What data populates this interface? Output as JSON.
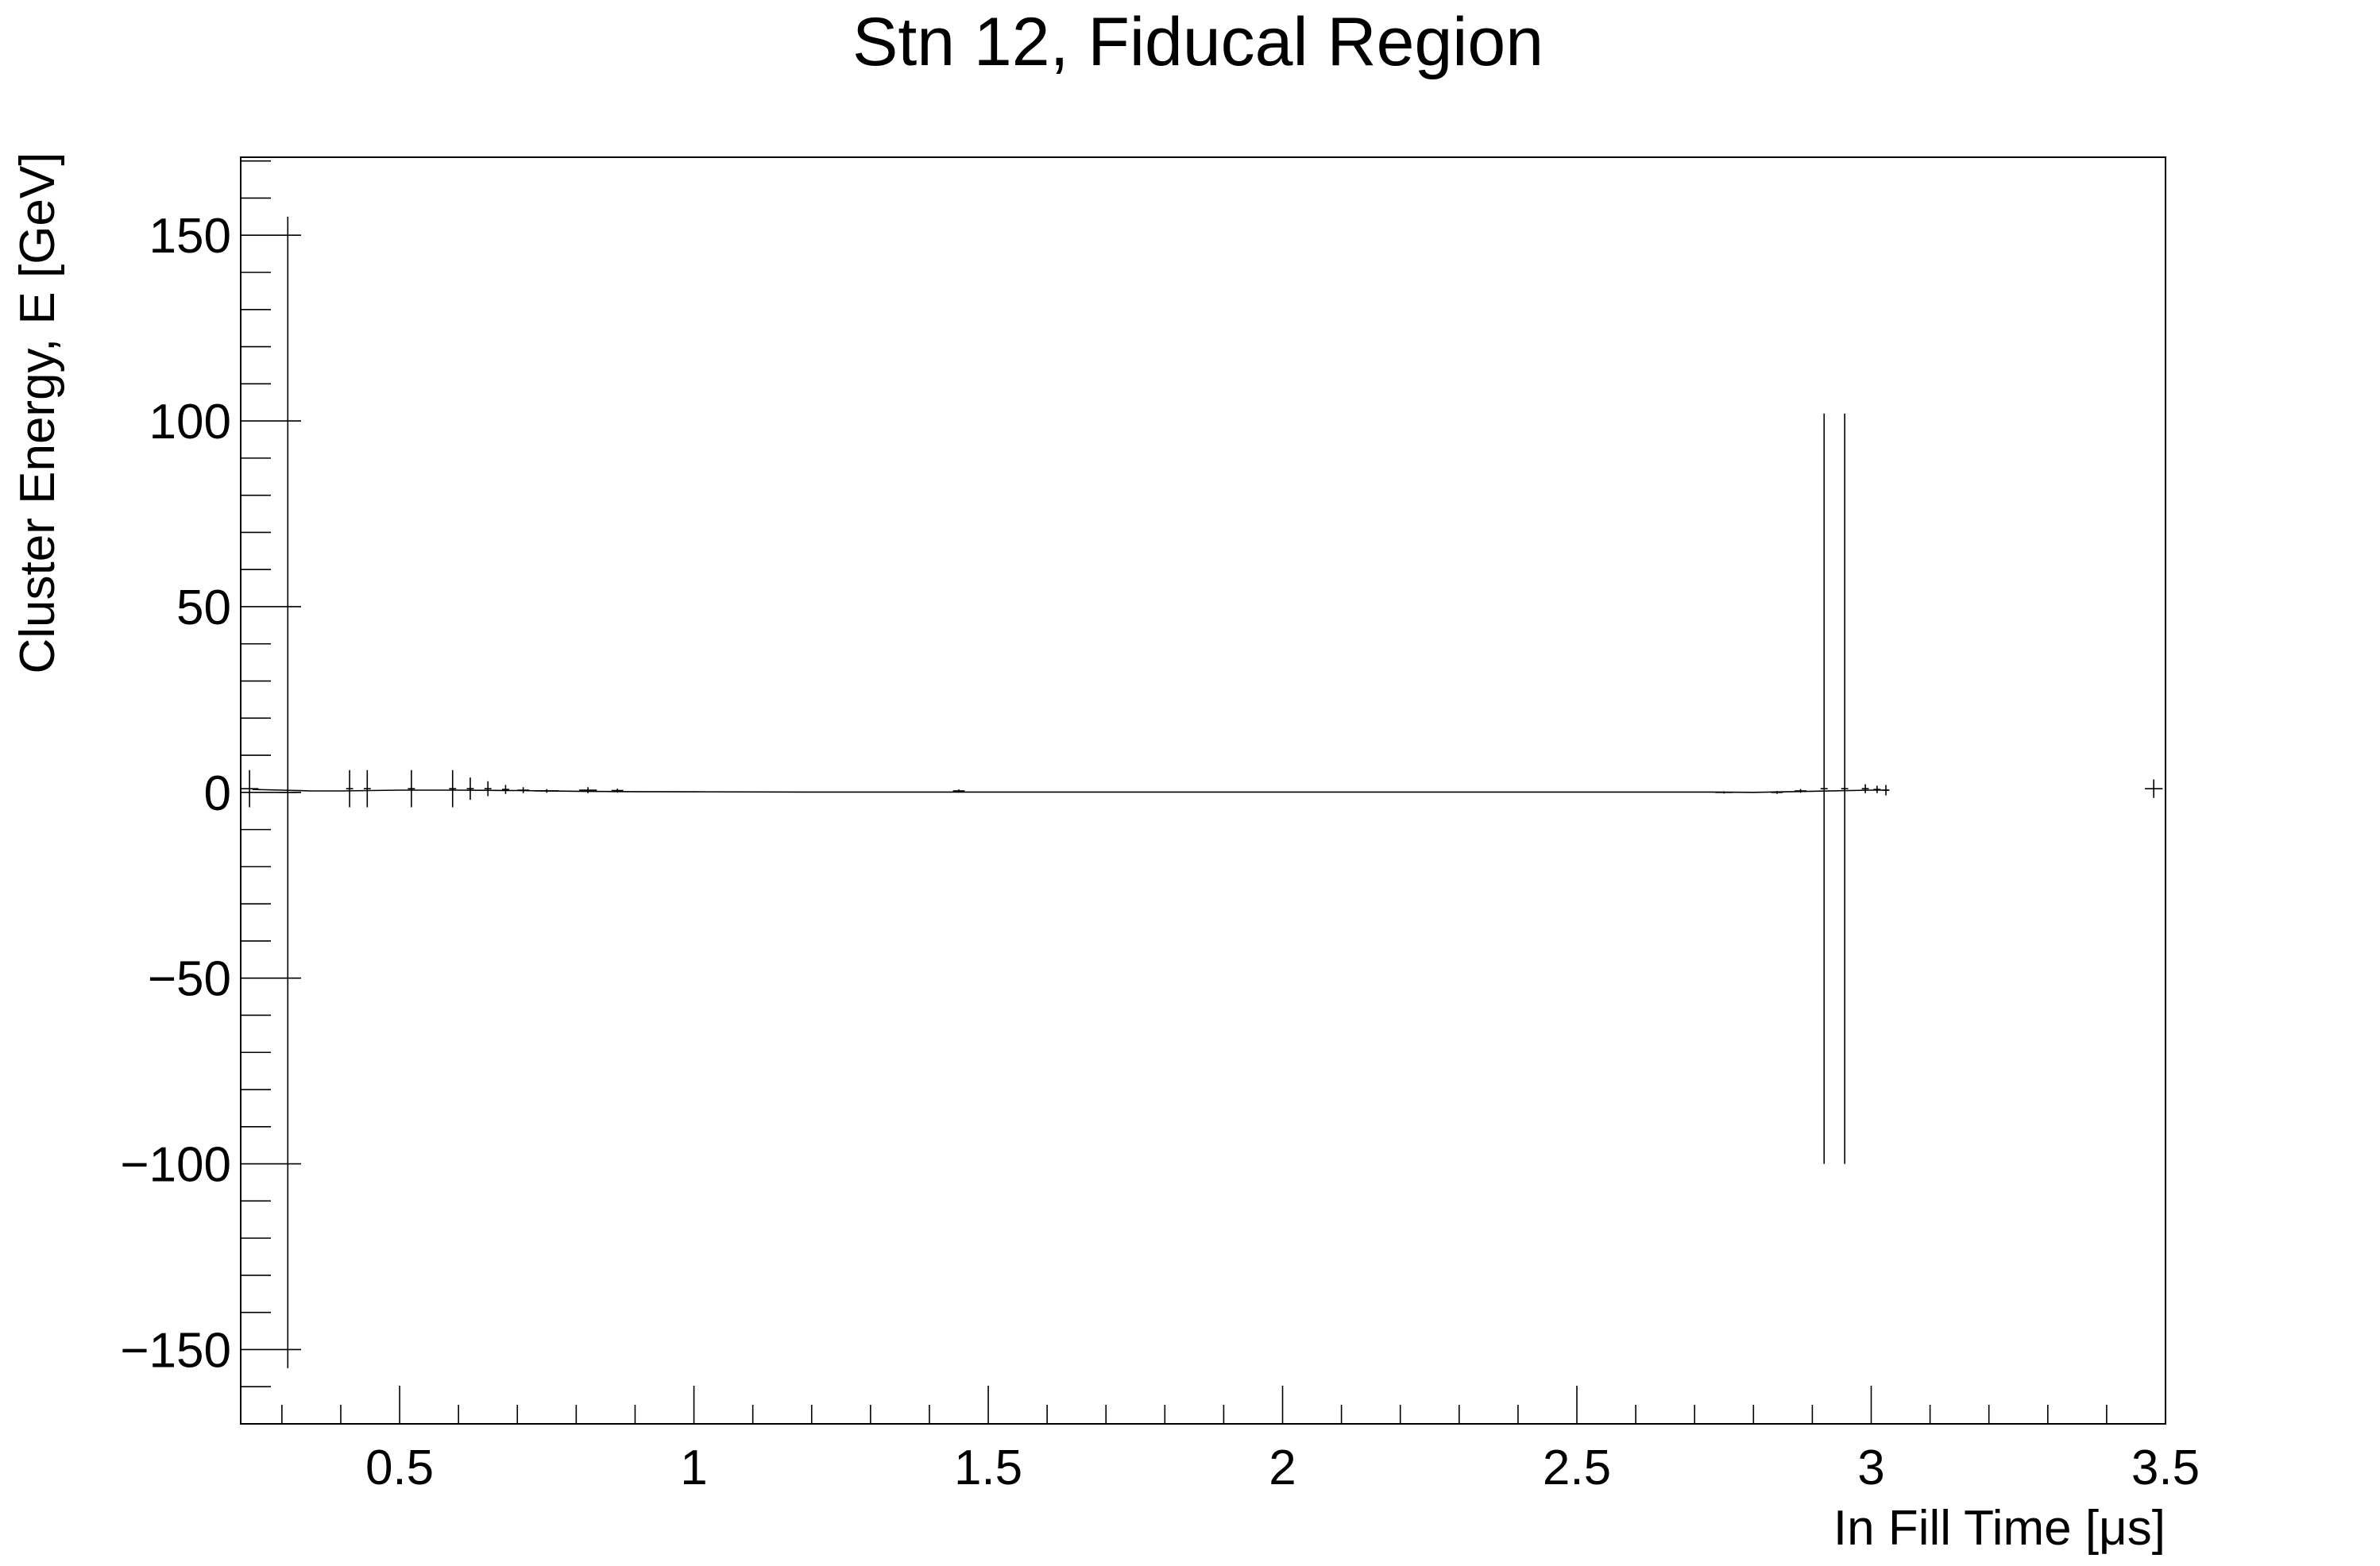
{
  "chart_data": {
    "type": "scatter",
    "title": "Stn 12, Fiducal Region",
    "xlabel": "In Fill Time [μs]",
    "ylabel": "Cluster Energy, E [GeV]",
    "xlim": [
      0.23,
      3.5
    ],
    "ylim": [
      -170,
      171
    ],
    "x_ticks": [
      0.5,
      1,
      1.5,
      2,
      2.5,
      3,
      3.5
    ],
    "x_tick_labels": [
      "0.5",
      "1",
      "1.5",
      "2",
      "2.5",
      "3",
      "3.5"
    ],
    "y_ticks": [
      -150,
      -100,
      -50,
      0,
      50,
      100,
      150
    ],
    "y_tick_labels": [
      "−150",
      "−100",
      "−50",
      "0",
      "50",
      "100",
      "150"
    ],
    "grid": false,
    "legend": "none",
    "series": [
      {
        "style": "error-bars",
        "x": [
          0.245,
          0.31,
          0.415,
          0.445,
          0.52,
          0.59,
          0.62,
          0.65,
          0.68,
          0.71,
          0.75,
          0.82,
          0.87,
          1.45,
          2.75,
          2.84,
          2.88,
          2.92,
          2.955,
          2.99,
          3.01,
          3.025,
          3.48
        ],
        "y": [
          1,
          0,
          1,
          1,
          1,
          1,
          1,
          1,
          0.8,
          0.6,
          0.4,
          0.6,
          0.5,
          0.4,
          0,
          0,
          0.4,
          1,
          1,
          1,
          0.8,
          0.6,
          1
        ],
        "yerr": [
          5,
          155,
          5,
          5,
          5,
          5,
          3,
          2,
          1.2,
          0.8,
          0.5,
          0.8,
          0.5,
          0.4,
          0.3,
          0.4,
          0.5,
          101,
          101,
          1.2,
          1.0,
          1.4,
          2.5
        ],
        "xerr": [
          0.015,
          0.015,
          0.006,
          0.006,
          0.006,
          0.006,
          0.006,
          0.006,
          0.006,
          0.01,
          0.02,
          0.015,
          0.01,
          0.01,
          0.015,
          0.01,
          0.01,
          0.006,
          0.006,
          0.006,
          0.006,
          0.006,
          0.015
        ]
      },
      {
        "style": "line",
        "x": [
          0.25,
          0.3,
          0.35,
          0.4,
          0.5,
          0.6,
          0.7,
          0.8,
          0.9,
          1.0,
          1.2,
          1.4,
          1.6,
          1.8,
          2.0,
          2.2,
          2.4,
          2.6,
          2.72,
          2.8,
          2.9,
          3.0,
          3.03
        ],
        "y": [
          0.8,
          0.6,
          0.4,
          0.4,
          0.6,
          0.6,
          0.5,
          0.3,
          0.2,
          0.15,
          0.1,
          0.1,
          0.1,
          0.1,
          0.1,
          0.1,
          0.1,
          0.1,
          0.1,
          0,
          0.3,
          0.6,
          0.6
        ]
      }
    ]
  }
}
